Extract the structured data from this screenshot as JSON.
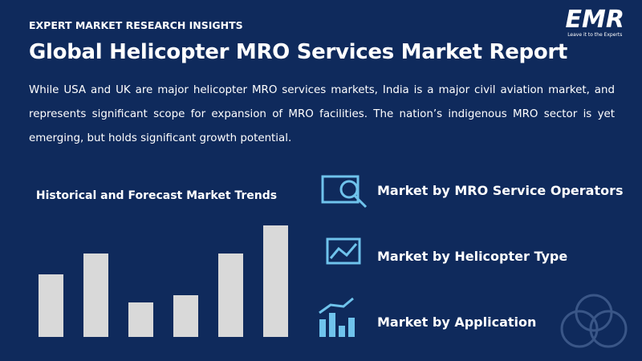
{
  "header": {
    "kicker": "EXPERT MARKET RESEARCH INSIGHTS",
    "title": "Global Helicopter MRO Services Market Report",
    "body": "While USA and UK are major helicopter MRO services markets, India is a major civil aviation market, and represents significant scope for expansion of MRO facilities. The nation’s indigenous MRO sector is yet emerging, but holds significant growth potential."
  },
  "logo": {
    "text": "EMR",
    "tagline": "Leave it to the Experts"
  },
  "chart_data": {
    "type": "bar",
    "title": "Historical and Forecast Market Trends",
    "values": [
      78,
      104,
      43,
      52,
      104,
      139
    ],
    "color": "#d9d9d9",
    "ylim": [
      0,
      140
    ]
  },
  "items": [
    "Market by MRO Service Operators",
    "Market by Helicopter Type",
    "Market by Application"
  ]
}
